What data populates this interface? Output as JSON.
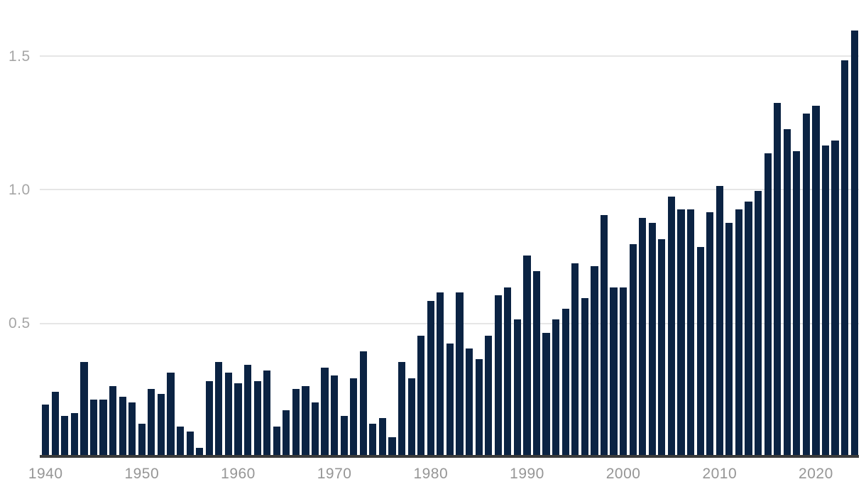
{
  "chart_data": {
    "type": "bar",
    "description": "Annual bar chart, values rising from ~0.2 in 1940 to ~1.6 in 2024 (global temperature anomaly style chart)",
    "categories": [
      1940,
      1941,
      1942,
      1943,
      1944,
      1945,
      1946,
      1947,
      1948,
      1949,
      1950,
      1951,
      1952,
      1953,
      1954,
      1955,
      1956,
      1957,
      1958,
      1959,
      1960,
      1961,
      1962,
      1963,
      1964,
      1965,
      1966,
      1967,
      1968,
      1969,
      1970,
      1971,
      1972,
      1973,
      1974,
      1975,
      1976,
      1977,
      1978,
      1979,
      1980,
      1981,
      1982,
      1983,
      1984,
      1985,
      1986,
      1987,
      1988,
      1989,
      1990,
      1991,
      1992,
      1993,
      1994,
      1995,
      1996,
      1997,
      1998,
      1999,
      2000,
      2001,
      2002,
      2003,
      2004,
      2005,
      2006,
      2007,
      2008,
      2009,
      2010,
      2011,
      2012,
      2013,
      2014,
      2015,
      2016,
      2017,
      2018,
      2019,
      2020,
      2021,
      2022,
      2023,
      2024
    ],
    "values": [
      0.19,
      0.24,
      0.15,
      0.16,
      0.35,
      0.21,
      0.21,
      0.26,
      0.22,
      0.2,
      0.12,
      0.25,
      0.23,
      0.31,
      0.11,
      0.09,
      0.03,
      0.28,
      0.35,
      0.31,
      0.27,
      0.34,
      0.28,
      0.32,
      0.11,
      0.17,
      0.25,
      0.26,
      0.2,
      0.33,
      0.3,
      0.15,
      0.29,
      0.39,
      0.12,
      0.14,
      0.07,
      0.35,
      0.29,
      0.45,
      0.58,
      0.61,
      0.42,
      0.61,
      0.4,
      0.36,
      0.45,
      0.6,
      0.63,
      0.51,
      0.75,
      0.69,
      0.46,
      0.51,
      0.55,
      0.72,
      0.59,
      0.71,
      0.9,
      0.63,
      0.63,
      0.79,
      0.89,
      0.87,
      0.81,
      0.97,
      0.92,
      0.92,
      0.78,
      0.91,
      1.01,
      0.87,
      0.92,
      0.95,
      0.99,
      1.13,
      1.32,
      1.22,
      1.14,
      1.28,
      1.31,
      1.16,
      1.18,
      1.48,
      1.59
    ],
    "title": "",
    "xlabel": "",
    "ylabel": "",
    "y_ticks": [
      "0.5",
      "1.0",
      "1.5"
    ],
    "x_ticks": [
      "1940",
      "1950",
      "1960",
      "1970",
      "1980",
      "1990",
      "2000",
      "2010",
      "2020"
    ],
    "ylim": [
      0,
      1.65
    ],
    "grid": "horizontal-only",
    "legend": "none",
    "colors": {
      "bar": "#0b2343",
      "axis_line": "#3a3a3a",
      "gridline": "#e6e6e6",
      "y_tick_label": "#a6a6a6",
      "x_tick_label": "#969696",
      "background": "#ffffff"
    }
  }
}
